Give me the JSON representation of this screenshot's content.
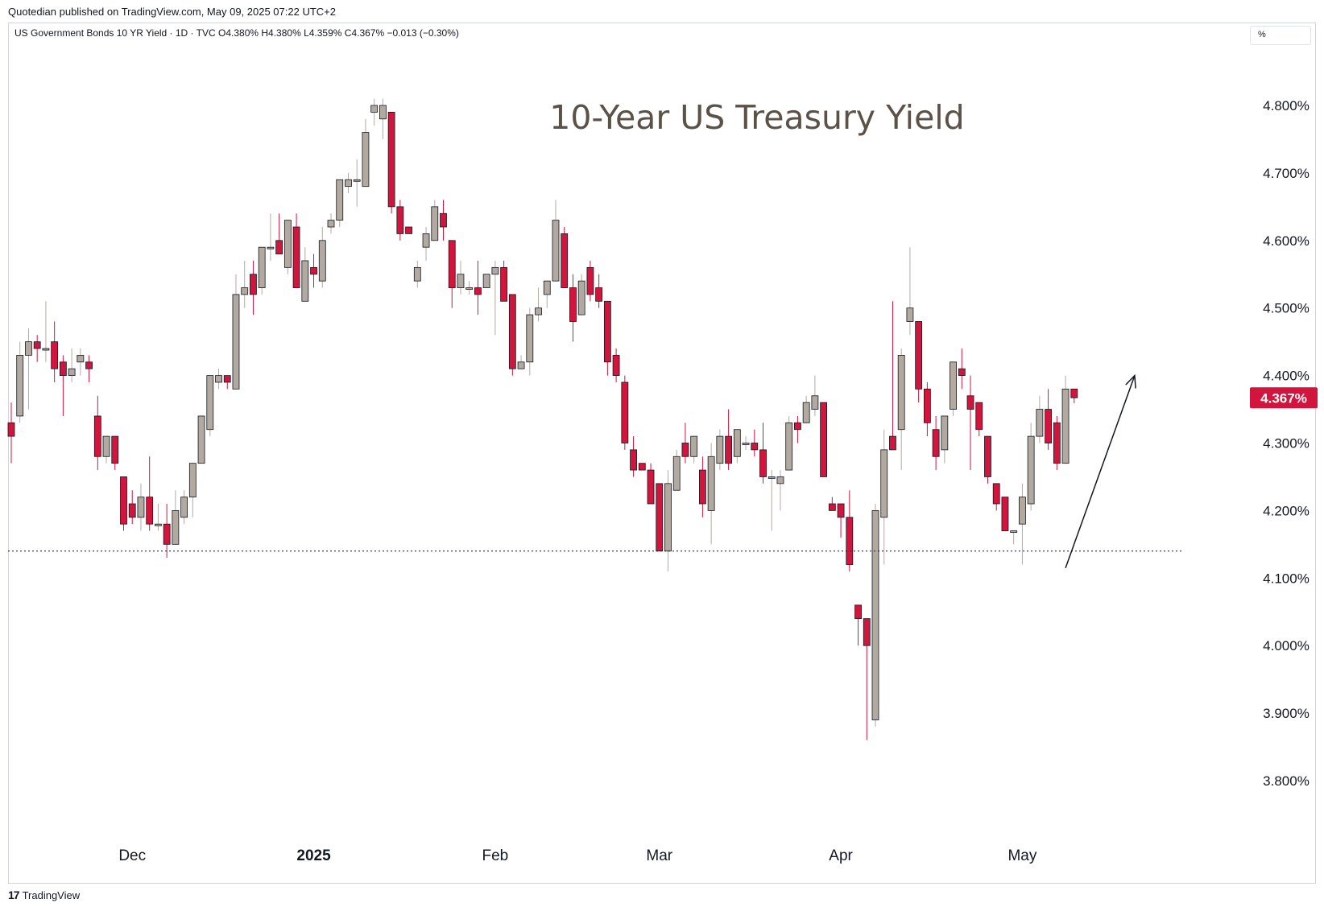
{
  "header": {
    "published": "Quotedian published on TradingView.com, May 09, 2025 07:22 UTC+2"
  },
  "symbol": {
    "line": "US Government Bonds 10 YR Yield · 1D · TVC  O4.380%  H4.380%  L4.359%  C4.367%  −0.013 (−0.30%)"
  },
  "unit_selector": {
    "label": "%"
  },
  "footer": {
    "brand": "TradingView",
    "logo_icon": "tradingview-logo-icon"
  },
  "colors": {
    "up": "#b2aaa1",
    "down": "#d1153d",
    "text": "#131722",
    "title": "#5b5247",
    "last_price_bg": "#d1153d"
  },
  "chart_data": {
    "type": "candlestick",
    "title": "10-Year US Treasury Yield",
    "ylim": [
      3.75,
      4.83
    ],
    "yticks": [
      "4.800%",
      "4.700%",
      "4.600%",
      "4.500%",
      "4.400%",
      "4.300%",
      "4.200%",
      "4.100%",
      "4.000%",
      "3.900%",
      "3.800%"
    ],
    "ytick_values": [
      4.8,
      4.7,
      4.6,
      4.5,
      4.4,
      4.3,
      4.2,
      4.1,
      4.0,
      3.9,
      3.8
    ],
    "month_labels": [
      {
        "label": "Dec",
        "index": 14
      },
      {
        "label": "2025",
        "index": 35
      },
      {
        "label": "Feb",
        "index": 56
      },
      {
        "label": "Mar",
        "index": 75
      },
      {
        "label": "Apr",
        "index": 96
      },
      {
        "label": "May",
        "index": 117
      }
    ],
    "last_price": {
      "label": "4.367%",
      "value": 4.367
    },
    "support_level": 4.14,
    "trend_arrow": {
      "from": [
        122,
        4.115
      ],
      "to": [
        130,
        4.4
      ]
    },
    "candles": [
      {
        "o": 4.33,
        "h": 4.36,
        "l": 4.27,
        "c": 4.31
      },
      {
        "o": 4.34,
        "h": 4.45,
        "l": 4.33,
        "c": 4.43
      },
      {
        "o": 4.43,
        "h": 4.47,
        "l": 4.35,
        "c": 4.45
      },
      {
        "o": 4.45,
        "h": 4.46,
        "l": 4.42,
        "c": 4.44
      },
      {
        "o": 4.44,
        "h": 4.51,
        "l": 4.42,
        "c": 4.44
      },
      {
        "o": 4.45,
        "h": 4.48,
        "l": 4.39,
        "c": 4.41
      },
      {
        "o": 4.42,
        "h": 4.43,
        "l": 4.34,
        "c": 4.4
      },
      {
        "o": 4.4,
        "h": 4.44,
        "l": 4.39,
        "c": 4.41
      },
      {
        "o": 4.42,
        "h": 4.44,
        "l": 4.4,
        "c": 4.43
      },
      {
        "o": 4.42,
        "h": 4.43,
        "l": 4.39,
        "c": 4.41
      },
      {
        "o": 4.34,
        "h": 4.37,
        "l": 4.26,
        "c": 4.28
      },
      {
        "o": 4.28,
        "h": 4.31,
        "l": 4.27,
        "c": 4.31
      },
      {
        "o": 4.31,
        "h": 4.31,
        "l": 4.26,
        "c": 4.27
      },
      {
        "o": 4.25,
        "h": 4.25,
        "l": 4.17,
        "c": 4.18
      },
      {
        "o": 4.21,
        "h": 4.23,
        "l": 4.18,
        "c": 4.19
      },
      {
        "o": 4.19,
        "h": 4.24,
        "l": 4.17,
        "c": 4.22
      },
      {
        "o": 4.22,
        "h": 4.28,
        "l": 4.17,
        "c": 4.18
      },
      {
        "o": 4.18,
        "h": 4.21,
        "l": 4.17,
        "c": 4.18
      },
      {
        "o": 4.18,
        "h": 4.21,
        "l": 4.13,
        "c": 4.15
      },
      {
        "o": 4.15,
        "h": 4.23,
        "l": 4.15,
        "c": 4.2
      },
      {
        "o": 4.19,
        "h": 4.23,
        "l": 4.18,
        "c": 4.22
      },
      {
        "o": 4.22,
        "h": 4.27,
        "l": 4.19,
        "c": 4.27
      },
      {
        "o": 4.27,
        "h": 4.34,
        "l": 4.27,
        "c": 4.34
      },
      {
        "o": 4.32,
        "h": 4.4,
        "l": 4.31,
        "c": 4.4
      },
      {
        "o": 4.39,
        "h": 4.41,
        "l": 4.38,
        "c": 4.4
      },
      {
        "o": 4.4,
        "h": 4.4,
        "l": 4.38,
        "c": 4.39
      },
      {
        "o": 4.38,
        "h": 4.55,
        "l": 4.38,
        "c": 4.52
      },
      {
        "o": 4.52,
        "h": 4.57,
        "l": 4.5,
        "c": 4.53
      },
      {
        "o": 4.55,
        "h": 4.57,
        "l": 4.49,
        "c": 4.52
      },
      {
        "o": 4.53,
        "h": 4.59,
        "l": 4.52,
        "c": 4.59
      },
      {
        "o": 4.59,
        "h": 4.64,
        "l": 4.57,
        "c": 4.59
      },
      {
        "o": 4.6,
        "h": 4.64,
        "l": 4.59,
        "c": 4.58
      },
      {
        "o": 4.56,
        "h": 4.63,
        "l": 4.55,
        "c": 4.63
      },
      {
        "o": 4.62,
        "h": 4.64,
        "l": 4.53,
        "c": 4.53
      },
      {
        "o": 4.51,
        "h": 4.59,
        "l": 4.51,
        "c": 4.57
      },
      {
        "o": 4.56,
        "h": 4.58,
        "l": 4.53,
        "c": 4.55
      },
      {
        "o": 4.54,
        "h": 4.62,
        "l": 4.53,
        "c": 4.6
      },
      {
        "o": 4.62,
        "h": 4.64,
        "l": 4.61,
        "c": 4.63
      },
      {
        "o": 4.63,
        "h": 4.69,
        "l": 4.62,
        "c": 4.69
      },
      {
        "o": 4.68,
        "h": 4.7,
        "l": 4.67,
        "c": 4.69
      },
      {
        "o": 4.69,
        "h": 4.72,
        "l": 4.65,
        "c": 4.69
      },
      {
        "o": 4.68,
        "h": 4.78,
        "l": 4.68,
        "c": 4.76
      },
      {
        "o": 4.79,
        "h": 4.81,
        "l": 4.77,
        "c": 4.8
      },
      {
        "o": 4.78,
        "h": 4.81,
        "l": 4.75,
        "c": 4.8
      },
      {
        "o": 4.79,
        "h": 4.79,
        "l": 4.64,
        "c": 4.65
      },
      {
        "o": 4.65,
        "h": 4.66,
        "l": 4.6,
        "c": 4.61
      },
      {
        "o": 4.62,
        "h": 4.62,
        "l": 4.61,
        "c": 4.61
      },
      {
        "o": 4.54,
        "h": 4.57,
        "l": 4.53,
        "c": 4.56
      },
      {
        "o": 4.59,
        "h": 4.62,
        "l": 4.57,
        "c": 4.61
      },
      {
        "o": 4.6,
        "h": 4.66,
        "l": 4.6,
        "c": 4.65
      },
      {
        "o": 4.64,
        "h": 4.66,
        "l": 4.6,
        "c": 4.62
      },
      {
        "o": 4.6,
        "h": 4.6,
        "l": 4.5,
        "c": 4.53
      },
      {
        "o": 4.53,
        "h": 4.57,
        "l": 4.52,
        "c": 4.55
      },
      {
        "o": 4.53,
        "h": 4.54,
        "l": 4.52,
        "c": 4.53
      },
      {
        "o": 4.53,
        "h": 4.57,
        "l": 4.49,
        "c": 4.52
      },
      {
        "o": 4.53,
        "h": 4.55,
        "l": 4.53,
        "c": 4.55
      },
      {
        "o": 4.55,
        "h": 4.57,
        "l": 4.46,
        "c": 4.56
      },
      {
        "o": 4.56,
        "h": 4.57,
        "l": 4.51,
        "c": 4.51
      },
      {
        "o": 4.52,
        "h": 4.52,
        "l": 4.4,
        "c": 4.41
      },
      {
        "o": 4.41,
        "h": 4.43,
        "l": 4.41,
        "c": 4.42
      },
      {
        "o": 4.42,
        "h": 4.5,
        "l": 4.4,
        "c": 4.49
      },
      {
        "o": 4.49,
        "h": 4.53,
        "l": 4.48,
        "c": 4.5
      },
      {
        "o": 4.52,
        "h": 4.53,
        "l": 4.5,
        "c": 4.54
      },
      {
        "o": 4.54,
        "h": 4.66,
        "l": 4.54,
        "c": 4.63
      },
      {
        "o": 4.61,
        "h": 4.62,
        "l": 4.53,
        "c": 4.53
      },
      {
        "o": 4.53,
        "h": 4.55,
        "l": 4.45,
        "c": 4.48
      },
      {
        "o": 4.49,
        "h": 4.55,
        "l": 4.49,
        "c": 4.54
      },
      {
        "o": 4.56,
        "h": 4.57,
        "l": 4.51,
        "c": 4.52
      },
      {
        "o": 4.53,
        "h": 4.55,
        "l": 4.5,
        "c": 4.51
      },
      {
        "o": 4.51,
        "h": 4.51,
        "l": 4.4,
        "c": 4.42
      },
      {
        "o": 4.43,
        "h": 4.44,
        "l": 4.39,
        "c": 4.4
      },
      {
        "o": 4.39,
        "h": 4.4,
        "l": 4.29,
        "c": 4.3
      },
      {
        "o": 4.29,
        "h": 4.31,
        "l": 4.25,
        "c": 4.26
      },
      {
        "o": 4.27,
        "h": 4.27,
        "l": 4.26,
        "c": 4.26
      },
      {
        "o": 4.26,
        "h": 4.27,
        "l": 4.21,
        "c": 4.21
      },
      {
        "o": 4.24,
        "h": 4.24,
        "l": 4.14,
        "c": 4.14
      },
      {
        "o": 4.14,
        "h": 4.26,
        "l": 4.11,
        "c": 4.24
      },
      {
        "o": 4.23,
        "h": 4.29,
        "l": 4.23,
        "c": 4.28
      },
      {
        "o": 4.3,
        "h": 4.33,
        "l": 4.27,
        "c": 4.28
      },
      {
        "o": 4.28,
        "h": 4.31,
        "l": 4.27,
        "c": 4.31
      },
      {
        "o": 4.26,
        "h": 4.28,
        "l": 4.19,
        "c": 4.21
      },
      {
        "o": 4.2,
        "h": 4.3,
        "l": 4.15,
        "c": 4.28
      },
      {
        "o": 4.27,
        "h": 4.32,
        "l": 4.26,
        "c": 4.31
      },
      {
        "o": 4.31,
        "h": 4.35,
        "l": 4.26,
        "c": 4.27
      },
      {
        "o": 4.28,
        "h": 4.32,
        "l": 4.27,
        "c": 4.32
      },
      {
        "o": 4.3,
        "h": 4.31,
        "l": 4.29,
        "c": 4.3
      },
      {
        "o": 4.3,
        "h": 4.32,
        "l": 4.28,
        "c": 4.29
      },
      {
        "o": 4.29,
        "h": 4.33,
        "l": 4.24,
        "c": 4.25
      },
      {
        "o": 4.25,
        "h": 4.26,
        "l": 4.17,
        "c": 4.25
      },
      {
        "o": 4.24,
        "h": 4.26,
        "l": 4.2,
        "c": 4.25
      },
      {
        "o": 4.26,
        "h": 4.34,
        "l": 4.26,
        "c": 4.33
      },
      {
        "o": 4.33,
        "h": 4.34,
        "l": 4.3,
        "c": 4.32
      },
      {
        "o": 4.33,
        "h": 4.37,
        "l": 4.33,
        "c": 4.36
      },
      {
        "o": 4.35,
        "h": 4.4,
        "l": 4.34,
        "c": 4.37
      },
      {
        "o": 4.36,
        "h": 4.36,
        "l": 4.25,
        "c": 4.25
      },
      {
        "o": 4.21,
        "h": 4.22,
        "l": 4.2,
        "c": 4.2
      },
      {
        "o": 4.21,
        "h": 4.21,
        "l": 4.16,
        "c": 4.19
      },
      {
        "o": 4.19,
        "h": 4.23,
        "l": 4.11,
        "c": 4.12
      },
      {
        "o": 4.06,
        "h": 4.06,
        "l": 4.0,
        "c": 4.04
      },
      {
        "o": 4.04,
        "h": 4.04,
        "l": 3.86,
        "c": 4.0
      },
      {
        "o": 3.89,
        "h": 4.21,
        "l": 3.88,
        "c": 4.2
      },
      {
        "o": 4.19,
        "h": 4.32,
        "l": 4.12,
        "c": 4.29
      },
      {
        "o": 4.31,
        "h": 4.51,
        "l": 4.3,
        "c": 4.29
      },
      {
        "o": 4.32,
        "h": 4.44,
        "l": 4.26,
        "c": 4.43
      },
      {
        "o": 4.48,
        "h": 4.59,
        "l": 4.46,
        "c": 4.5
      },
      {
        "o": 4.48,
        "h": 4.48,
        "l": 4.36,
        "c": 4.38
      },
      {
        "o": 4.38,
        "h": 4.39,
        "l": 4.31,
        "c": 4.33
      },
      {
        "o": 4.32,
        "h": 4.34,
        "l": 4.26,
        "c": 4.28
      },
      {
        "o": 4.29,
        "h": 4.34,
        "l": 4.27,
        "c": 4.34
      },
      {
        "o": 4.35,
        "h": 4.42,
        "l": 4.34,
        "c": 4.42
      },
      {
        "o": 4.41,
        "h": 4.44,
        "l": 4.38,
        "c": 4.4
      },
      {
        "o": 4.37,
        "h": 4.4,
        "l": 4.26,
        "c": 4.35
      },
      {
        "o": 4.36,
        "h": 4.36,
        "l": 4.31,
        "c": 4.32
      },
      {
        "o": 4.31,
        "h": 4.31,
        "l": 4.24,
        "c": 4.25
      },
      {
        "o": 4.24,
        "h": 4.24,
        "l": 4.2,
        "c": 4.21
      },
      {
        "o": 4.22,
        "h": 4.22,
        "l": 4.17,
        "c": 4.17
      },
      {
        "o": 4.17,
        "h": 4.17,
        "l": 4.15,
        "c": 4.17
      },
      {
        "o": 4.18,
        "h": 4.24,
        "l": 4.12,
        "c": 4.22
      },
      {
        "o": 4.21,
        "h": 4.33,
        "l": 4.2,
        "c": 4.31
      },
      {
        "o": 4.31,
        "h": 4.37,
        "l": 4.3,
        "c": 4.35
      },
      {
        "o": 4.35,
        "h": 4.38,
        "l": 4.29,
        "c": 4.3
      },
      {
        "o": 4.33,
        "h": 4.34,
        "l": 4.26,
        "c": 4.27
      },
      {
        "o": 4.27,
        "h": 4.4,
        "l": 4.27,
        "c": 4.38
      },
      {
        "o": 4.38,
        "h": 4.38,
        "l": 4.359,
        "c": 4.367
      }
    ]
  }
}
